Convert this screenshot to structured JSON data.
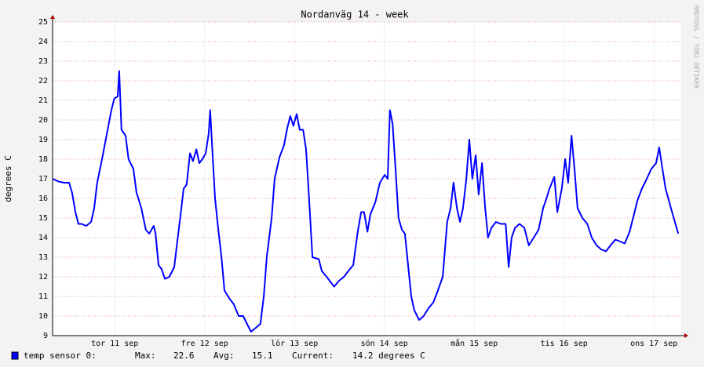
{
  "chart_data": {
    "type": "line",
    "title": "Nordanväg 14 - week",
    "y_label": "degrees C",
    "watermark": "RRDTOOL / TOBI OETIKER",
    "xlim": [
      -4.6,
      163.3
    ],
    "xticks": [
      {
        "value": 12,
        "label": "tor 11 sep"
      },
      {
        "value": 36,
        "label": "fre 12 sep"
      },
      {
        "value": 60,
        "label": "lör 13 sep"
      },
      {
        "value": 84,
        "label": "sön 14 sep"
      },
      {
        "value": 108,
        "label": "mån 15 sep"
      },
      {
        "value": 132,
        "label": "tis 16 sep"
      },
      {
        "value": 156,
        "label": "ons 17 sep"
      }
    ],
    "ylim": [
      9,
      25
    ],
    "yticks": [
      9,
      10,
      11,
      12,
      13,
      14,
      15,
      16,
      17,
      18,
      19,
      20,
      21,
      22,
      23,
      24,
      25
    ],
    "grid": true,
    "x": [
      -4.6,
      -2.9,
      -1.5,
      -0.2,
      0.6,
      1.5,
      2.3,
      3.1,
      4.4,
      5.7,
      6.5,
      7.3,
      8.6,
      9.9,
      11.1,
      11.9,
      12.8,
      13.2,
      13.8,
      14.9,
      15.7,
      17.0,
      17.8,
      19.1,
      20.3,
      21.2,
      22.4,
      22.9,
      23.7,
      24.5,
      25.4,
      26.6,
      27.9,
      28.7,
      29.6,
      30.4,
      31.2,
      32.1,
      32.9,
      33.8,
      34.6,
      35.4,
      36.3,
      37.1,
      37.5,
      38.2,
      38.8,
      39.6,
      40.5,
      41.3,
      42.6,
      43.8,
      45.1,
      46.3,
      47.6,
      48.4,
      49.7,
      50.9,
      51.8,
      52.6,
      53.9,
      54.7,
      56.0,
      57.2,
      58.1,
      58.9,
      59.7,
      60.6,
      61.4,
      62.3,
      63.1,
      63.9,
      64.8,
      66.5,
      67.3,
      68.6,
      69.8,
      70.6,
      71.9,
      73.2,
      74.4,
      75.7,
      76.9,
      77.8,
      78.6,
      79.5,
      80.3,
      81.6,
      82.8,
      84.1,
      84.9,
      85.5,
      86.2,
      87.0,
      87.8,
      88.7,
      89.5,
      90.4,
      91.2,
      92.0,
      93.3,
      94.5,
      95.8,
      97.1,
      98.3,
      99.6,
      100.8,
      101.7,
      102.5,
      103.4,
      104.2,
      105.0,
      105.9,
      106.7,
      107.5,
      108.4,
      109.2,
      110.1,
      110.9,
      111.7,
      112.6,
      113.8,
      115.1,
      116.4,
      117.2,
      118.0,
      118.9,
      120.1,
      121.4,
      122.6,
      123.9,
      125.2,
      126.4,
      127.3,
      128.1,
      129.4,
      130.2,
      131.4,
      132.3,
      133.1,
      134.0,
      134.8,
      135.6,
      136.9,
      138.2,
      139.4,
      140.7,
      141.9,
      143.2,
      144.4,
      145.7,
      147.0,
      148.2,
      149.5,
      150.7,
      151.6,
      152.8,
      154.1,
      155.3,
      156.6,
      157.4,
      158.3,
      159.1,
      160.4,
      161.6,
      162.5
    ],
    "series": [
      {
        "name": "temp sensor 0:",
        "color": "#0000ff",
        "values": [
          17.0,
          16.85,
          16.8,
          16.8,
          16.3,
          15.3,
          14.7,
          14.7,
          14.6,
          14.8,
          15.5,
          16.8,
          18.0,
          19.3,
          20.5,
          21.1,
          21.2,
          22.5,
          19.5,
          19.2,
          18.0,
          17.5,
          16.3,
          15.5,
          14.4,
          14.2,
          14.6,
          14.2,
          12.6,
          12.4,
          11.9,
          12.0,
          12.5,
          13.8,
          15.2,
          16.5,
          16.7,
          18.3,
          17.9,
          18.5,
          17.8,
          18.0,
          18.3,
          19.3,
          20.5,
          18.0,
          16.0,
          14.5,
          13.0,
          11.3,
          10.9,
          10.6,
          10.0,
          10.0,
          9.5,
          9.2,
          9.4,
          9.6,
          11.0,
          13.0,
          15.0,
          17.0,
          18.1,
          18.7,
          19.6,
          20.2,
          19.7,
          20.3,
          19.5,
          19.5,
          18.5,
          16.0,
          13.0,
          12.9,
          12.3,
          12.0,
          11.7,
          11.5,
          11.8,
          12.0,
          12.3,
          12.6,
          14.3,
          15.3,
          15.3,
          14.3,
          15.2,
          15.8,
          16.8,
          17.2,
          17.0,
          20.5,
          19.8,
          17.5,
          15.0,
          14.4,
          14.2,
          12.5,
          11.0,
          10.3,
          9.8,
          10.0,
          10.4,
          10.7,
          11.3,
          12.0,
          14.8,
          15.5,
          16.8,
          15.5,
          14.8,
          15.5,
          17.0,
          19.0,
          17.0,
          18.2,
          16.2,
          17.8,
          15.6,
          14.0,
          14.5,
          14.8,
          14.7,
          14.7,
          12.5,
          14.0,
          14.5,
          14.7,
          14.5,
          13.6,
          14.0,
          14.4,
          15.5,
          16.0,
          16.5,
          17.1,
          15.3,
          16.5,
          18.0,
          16.8,
          19.2,
          17.5,
          15.5,
          15.0,
          14.7,
          14.0,
          13.6,
          13.4,
          13.3,
          13.6,
          13.9,
          13.8,
          13.7,
          14.3,
          15.2,
          15.9,
          16.5,
          17.0,
          17.5,
          17.8,
          18.6,
          17.5,
          16.5,
          15.6,
          14.8,
          14.2
        ]
      }
    ],
    "legend": {
      "max_label": "Max:",
      "max": 22.6,
      "avg_label": "Avg:",
      "avg": 15.1,
      "current_label": "Current:",
      "current": "14.2 degrees C"
    }
  }
}
